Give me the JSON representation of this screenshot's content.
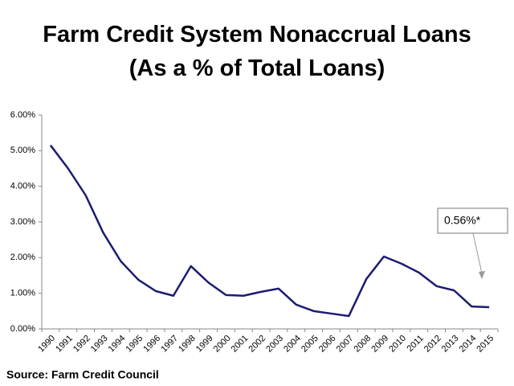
{
  "chart_data": {
    "type": "line",
    "title": [
      "Farm Credit System Nonaccrual Loans",
      "(As a % of Total Loans)"
    ],
    "categories": [
      "1990",
      "1991",
      "1992",
      "1993",
      "1994",
      "1995",
      "1996",
      "1997",
      "1998",
      "1999",
      "2000",
      "2001",
      "2002",
      "2003",
      "2004",
      "2005",
      "2006",
      "2007",
      "2008",
      "2009",
      "2010",
      "2011",
      "2012",
      "2013",
      "2014",
      "2015"
    ],
    "values": [
      5.15,
      4.5,
      3.75,
      2.7,
      1.9,
      1.38,
      1.06,
      0.93,
      1.76,
      1.3,
      0.95,
      0.93,
      1.04,
      1.13,
      0.68,
      0.5,
      0.43,
      0.36,
      1.4,
      2.03,
      1.83,
      1.58,
      1.2,
      1.08,
      0.63,
      0.61
    ],
    "color": "#1c1c72",
    "ylim": [
      0,
      6
    ],
    "yticks": [
      {
        "value": 0,
        "label": "0.00%"
      },
      {
        "value": 1,
        "label": "1.00%"
      },
      {
        "value": 2,
        "label": "2.00%"
      },
      {
        "value": 3,
        "label": "3.00%"
      },
      {
        "value": 4,
        "label": "4.00%"
      },
      {
        "value": 5,
        "label": "5.00%"
      },
      {
        "value": 6,
        "label": "6.00%"
      }
    ],
    "grid": false,
    "annotation": "0.56%*",
    "source": "Source: Farm Credit Council"
  }
}
